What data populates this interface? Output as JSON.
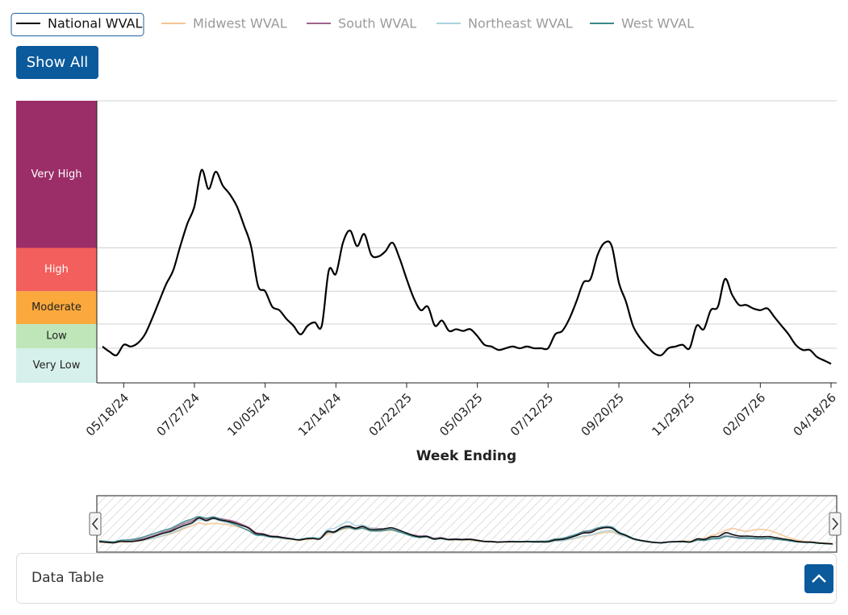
{
  "chart_data": {
    "type": "line",
    "x_label": "Week Ending",
    "show_all_button": "Show All",
    "categories": [
      null,
      null,
      null,
      "05/18/24",
      null,
      null,
      null,
      null,
      null,
      null,
      null,
      null,
      null,
      "07/27/24",
      null,
      null,
      null,
      null,
      null,
      null,
      null,
      null,
      null,
      "10/05/24",
      null,
      null,
      null,
      null,
      null,
      null,
      null,
      null,
      null,
      "12/14/24",
      null,
      null,
      null,
      null,
      null,
      null,
      null,
      null,
      null,
      "02/22/25",
      null,
      null,
      null,
      null,
      null,
      null,
      null,
      null,
      null,
      "05/03/25",
      null,
      null,
      null,
      null,
      null,
      null,
      null,
      null,
      null,
      "07/12/25",
      null,
      null,
      null,
      null,
      null,
      null,
      null,
      null,
      null,
      "09/20/25",
      null,
      null,
      null,
      null,
      null,
      null,
      null,
      null,
      null,
      "11/29/25",
      null,
      null,
      null,
      null,
      null,
      null,
      null,
      null,
      null,
      "02/07/26",
      null,
      null,
      null,
      null,
      null,
      null,
      null,
      null,
      null,
      "04/18/26"
    ],
    "ylim": [
      0,
      16.3
    ],
    "levels": [
      {
        "label": "Very Low",
        "min": 0,
        "color": "#d6f0ec",
        "text_color": "#222222"
      },
      {
        "label": "Low",
        "min": 2,
        "color": "#bfe6b9",
        "text_color": "#222222"
      },
      {
        "label": "Moderate",
        "min": 3.4,
        "color": "#fba83c",
        "text_color": "#222222"
      },
      {
        "label": "High",
        "min": 5.3,
        "color": "#f25f5c",
        "text_color": "#ffffff"
      },
      {
        "label": "Very High",
        "min": 7.8,
        "color": "#9b2d68",
        "text_color": "#ffffff"
      }
    ],
    "series": [
      {
        "name": "National WVAL",
        "color": "#000000",
        "visible": true,
        "values": [
          2.1,
          1.8,
          1.6,
          2.2,
          2.1,
          2.3,
          2.8,
          3.7,
          4.7,
          5.7,
          6.5,
          7.9,
          9.2,
          10.2,
          12.3,
          11.2,
          12.2,
          11.4,
          10.9,
          10.2,
          9.1,
          7.9,
          5.6,
          5.3,
          4.4,
          4.2,
          3.7,
          3.3,
          2.8,
          3.3,
          3.5,
          3.3,
          6.5,
          6.3,
          8.1,
          8.8,
          7.9,
          8.6,
          7.4,
          7.3,
          7.6,
          8.1,
          7.2,
          6.0,
          4.9,
          4.2,
          4.4,
          3.3,
          3.6,
          3.0,
          3.1,
          3.0,
          3.1,
          2.7,
          2.2,
          2.1,
          1.9,
          2.0,
          2.1,
          2.0,
          2.1,
          2.0,
          2.0,
          2.0,
          2.8,
          3.0,
          3.7,
          4.7,
          5.8,
          6.0,
          7.4,
          8.1,
          7.9,
          5.8,
          4.7,
          3.3,
          2.6,
          2.1,
          1.7,
          1.6,
          2.0,
          2.1,
          2.2,
          2.0,
          3.3,
          3.1,
          4.2,
          4.4,
          6.0,
          5.1,
          4.5,
          4.5,
          4.3,
          4.2,
          4.3,
          3.8,
          3.3,
          2.8,
          2.2,
          1.9,
          1.9,
          1.5,
          1.3,
          1.1
        ]
      },
      {
        "name": "Midwest WVAL",
        "color": "#f5c494",
        "visible": false,
        "values": [
          1.8,
          1.7,
          1.6,
          1.9,
          2.0,
          2.2,
          2.5,
          3.1,
          3.8,
          4.6,
          5.4,
          6.5,
          7.8,
          8.9,
          10.1,
          9.6,
          10.0,
          9.8,
          9.4,
          8.8,
          8.0,
          7.0,
          5.4,
          4.8,
          4.1,
          3.7,
          3.3,
          3.0,
          2.7,
          3.0,
          3.2,
          3.5,
          5.2,
          6.0,
          7.2,
          7.9,
          7.5,
          7.8,
          7.0,
          6.6,
          6.8,
          7.0,
          6.4,
          5.6,
          4.7,
          4.1,
          4.0,
          3.2,
          3.3,
          2.9,
          2.8,
          2.7,
          2.7,
          2.4,
          2.1,
          2.0,
          1.8,
          1.9,
          1.9,
          1.9,
          2.0,
          1.9,
          1.9,
          2.0,
          2.4,
          2.6,
          3.0,
          3.6,
          4.3,
          4.8,
          5.5,
          6.0,
          6.2,
          5.0,
          4.2,
          3.1,
          2.5,
          2.0,
          1.7,
          1.6,
          1.9,
          2.1,
          2.4,
          2.3,
          3.2,
          3.5,
          4.8,
          5.6,
          7.0,
          7.8,
          7.0,
          6.6,
          7.2,
          7.4,
          7.0,
          6.0,
          4.8,
          3.6,
          2.8,
          2.2,
          2.0,
          1.7,
          1.5,
          1.3
        ]
      },
      {
        "name": "South WVAL",
        "color": "#a0628d",
        "visible": false,
        "values": [
          2.3,
          2.0,
          1.8,
          2.4,
          2.4,
          2.6,
          3.2,
          4.1,
          5.1,
          6.2,
          7.1,
          8.6,
          10.0,
          11.0,
          12.4,
          11.8,
          12.6,
          12.0,
          11.5,
          10.8,
          9.6,
          8.2,
          6.0,
          5.5,
          4.6,
          4.4,
          3.8,
          3.4,
          2.9,
          3.4,
          3.6,
          3.4,
          6.0,
          6.4,
          8.0,
          8.4,
          7.8,
          8.9,
          8.0,
          7.8,
          7.6,
          7.6,
          6.8,
          5.8,
          5.0,
          4.6,
          4.5,
          3.6,
          3.8,
          3.2,
          3.3,
          3.1,
          3.2,
          2.8,
          2.3,
          2.2,
          2.0,
          2.1,
          2.2,
          2.1,
          2.2,
          2.1,
          2.1,
          2.1,
          2.9,
          3.2,
          3.9,
          4.9,
          6.1,
          6.4,
          7.6,
          8.3,
          8.0,
          6.0,
          4.8,
          3.4,
          2.7,
          2.2,
          1.8,
          1.7,
          2.0,
          2.0,
          2.1,
          1.9,
          2.8,
          2.7,
          3.4,
          3.6,
          4.5,
          4.2,
          3.8,
          3.8,
          3.6,
          3.5,
          3.6,
          3.3,
          3.0,
          2.6,
          2.1,
          1.9,
          1.8,
          1.5,
          1.3,
          1.1
        ]
      },
      {
        "name": "Northeast WVAL",
        "color": "#a9d3df",
        "visible": false,
        "values": [
          2.5,
          2.2,
          1.9,
          2.3,
          2.3,
          2.4,
          2.6,
          3.2,
          3.9,
          4.8,
          5.7,
          7.0,
          8.4,
          9.8,
          11.6,
          11.0,
          11.8,
          11.0,
          10.2,
          9.4,
          8.2,
          6.8,
          5.0,
          4.6,
          4.0,
          3.8,
          3.4,
          3.2,
          3.0,
          3.6,
          4.0,
          4.0,
          7.2,
          7.8,
          9.5,
          10.6,
          9.0,
          9.2,
          8.0,
          7.6,
          7.4,
          7.6,
          6.8,
          5.7,
          4.8,
          4.3,
          4.3,
          3.4,
          3.6,
          3.1,
          3.0,
          2.9,
          3.0,
          2.6,
          2.2,
          2.1,
          1.9,
          2.0,
          2.1,
          2.0,
          2.0,
          1.9,
          1.9,
          1.9,
          2.3,
          2.5,
          3.0,
          3.8,
          4.6,
          4.9,
          5.9,
          6.6,
          6.8,
          5.2,
          4.2,
          3.1,
          2.5,
          2.0,
          1.7,
          1.6,
          1.9,
          2.0,
          2.1,
          2.0,
          3.0,
          3.0,
          3.8,
          4.0,
          5.4,
          5.0,
          4.4,
          4.2,
          4.0,
          3.9,
          3.9,
          3.5,
          3.0,
          2.6,
          2.1,
          1.8,
          1.8,
          1.5,
          1.3,
          1.1
        ]
      },
      {
        "name": "West WVAL",
        "color": "#3b878b",
        "visible": false,
        "values": [
          2.4,
          2.2,
          2.0,
          2.7,
          2.8,
          3.2,
          3.9,
          4.9,
          5.9,
          6.9,
          7.8,
          9.3,
          10.8,
          11.8,
          12.9,
          12.2,
          12.8,
          11.8,
          10.8,
          9.6,
          8.2,
          6.8,
          5.0,
          4.8,
          4.2,
          4.0,
          3.6,
          3.3,
          3.0,
          3.4,
          3.6,
          3.4,
          6.2,
          6.0,
          7.6,
          8.2,
          7.4,
          7.9,
          6.8,
          6.7,
          6.9,
          7.3,
          6.4,
          5.4,
          4.4,
          3.9,
          4.1,
          3.1,
          3.4,
          2.9,
          3.0,
          2.9,
          3.0,
          2.6,
          2.2,
          2.1,
          1.9,
          2.0,
          2.1,
          2.1,
          2.2,
          2.2,
          2.3,
          2.4,
          3.2,
          3.5,
          4.3,
          5.3,
          6.5,
          6.9,
          8.0,
          8.6,
          8.4,
          6.2,
          4.9,
          3.5,
          2.7,
          2.2,
          1.8,
          1.6,
          1.9,
          2.0,
          2.0,
          1.9,
          2.7,
          2.6,
          3.3,
          3.4,
          4.3,
          4.0,
          3.6,
          3.6,
          3.4,
          3.3,
          3.4,
          3.1,
          2.8,
          2.4,
          2.0,
          1.8,
          1.7,
          1.4,
          1.2,
          1.1
        ]
      }
    ]
  },
  "data_table": {
    "title": "Data Table"
  }
}
